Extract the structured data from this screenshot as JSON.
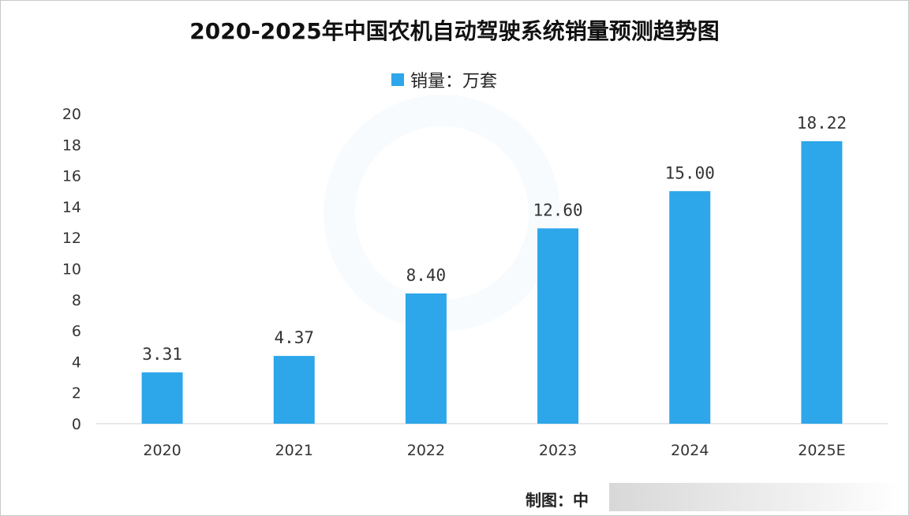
{
  "chart_data": {
    "type": "bar",
    "title": "2020-2025年中国农机自动驾驶系统销量预测趋势图",
    "categories": [
      "2020",
      "2021",
      "2022",
      "2023",
      "2024",
      "2025E"
    ],
    "series": [
      {
        "name": "销量：万套",
        "values": [
          3.31,
          4.37,
          8.4,
          12.6,
          15.0,
          18.22
        ],
        "labels": [
          "3.31",
          "4.37",
          "8.40",
          "12.60",
          "15.00",
          "18.22"
        ]
      }
    ],
    "yticks": [
      "0",
      "2",
      "4",
      "6",
      "8",
      "10",
      "12",
      "14",
      "16",
      "18",
      "20"
    ],
    "ylim": [
      0,
      20
    ],
    "legend": "top-center",
    "grid": false,
    "bar_color": "#2da6ea"
  },
  "source": {
    "label": "制图：中"
  }
}
